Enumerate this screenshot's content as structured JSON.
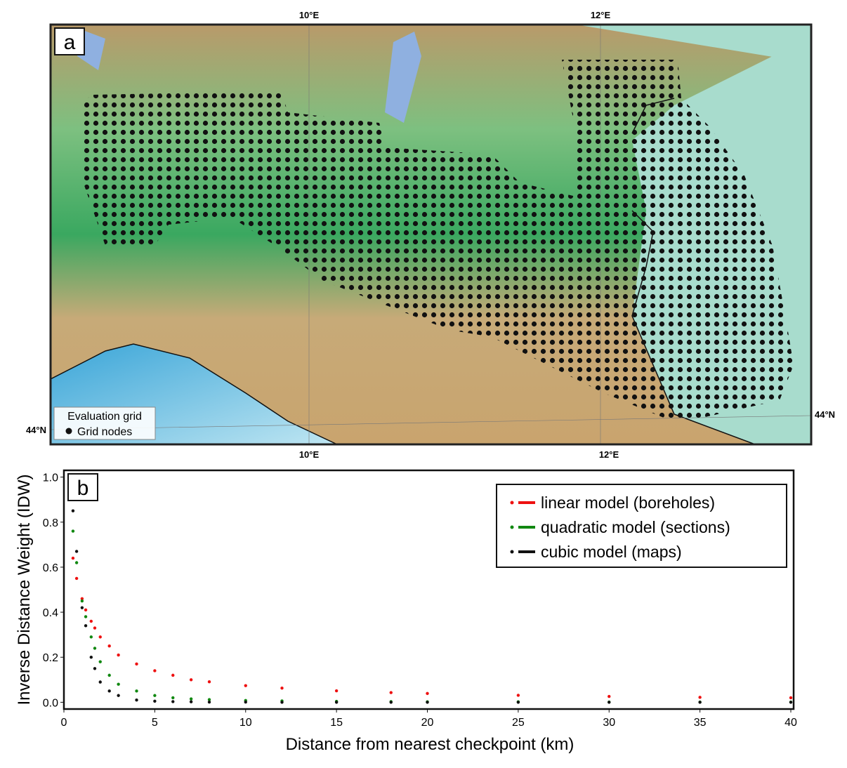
{
  "map": {
    "panel_label": "a",
    "lon_top": [
      "10°E",
      "12°E"
    ],
    "lon_bottom": [
      "10°E",
      "12°E"
    ],
    "lat_left": "44°N",
    "lat_right": "44°N",
    "legend_title": "Evaluation grid",
    "legend_item": "Grid nodes"
  },
  "chart_data": {
    "type": "scatter",
    "panel_label": "b",
    "x_label": "Distance from nearest checkpoint (km)",
    "y_label": "Inverse Distance Weight (IDW)",
    "xlim": [
      0,
      40
    ],
    "ylim": [
      -0.03,
      1.03
    ],
    "xticks": [
      0,
      5,
      10,
      15,
      20,
      25,
      30,
      35,
      40
    ],
    "yticks": [
      {
        "value": 0,
        "label": "0.0"
      },
      0.2,
      0.4,
      0.6,
      0.8,
      {
        "value": 1,
        "label": "1.0"
      }
    ],
    "legend": "upper right",
    "x": [
      0.5,
      0.7,
      1.0,
      1.2,
      1.5,
      1.7,
      2,
      2.5,
      3,
      4,
      5,
      6,
      7,
      8,
      10,
      12,
      15,
      18,
      20,
      25,
      30,
      35,
      40
    ],
    "series": [
      {
        "name": "linear model (boreholes)",
        "color": "#ee1111",
        "values": [
          0.64,
          0.55,
          0.46,
          0.41,
          0.36,
          0.33,
          0.29,
          0.25,
          0.21,
          0.17,
          0.14,
          0.12,
          0.1,
          0.091,
          0.074,
          0.063,
          0.051,
          0.043,
          0.039,
          0.031,
          0.026,
          0.022,
          0.02
        ]
      },
      {
        "name": "quadratic model (sections)",
        "color": "#118811",
        "values": [
          0.76,
          0.62,
          0.45,
          0.38,
          0.29,
          0.24,
          0.18,
          0.12,
          0.08,
          0.05,
          0.03,
          0.02,
          0.015,
          0.012,
          0.008,
          0.006,
          0.004,
          0.003,
          0.002,
          0.002,
          0.001,
          0.001,
          0.001
        ]
      },
      {
        "name": "cubic model (maps)",
        "color": "#111111",
        "values": [
          0.85,
          0.67,
          0.42,
          0.34,
          0.2,
          0.15,
          0.09,
          0.05,
          0.03,
          0.01,
          0.005,
          0.003,
          0.002,
          0.001,
          0.001,
          0,
          0,
          0,
          0,
          0,
          0,
          0,
          0
        ]
      }
    ]
  }
}
